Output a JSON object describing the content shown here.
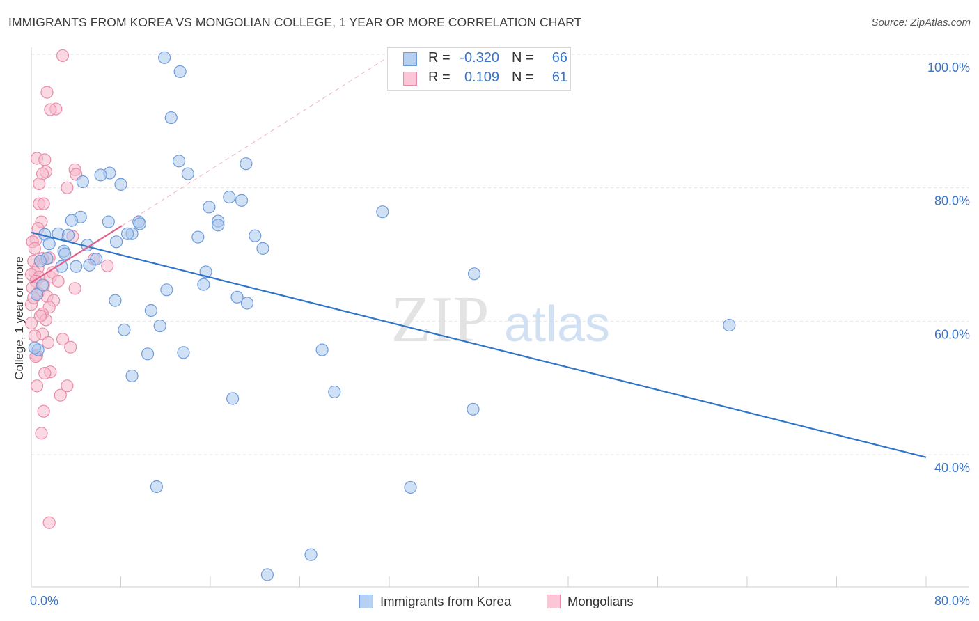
{
  "title": "IMMIGRANTS FROM KOREA VS MONGOLIAN COLLEGE, 1 YEAR OR MORE CORRELATION CHART",
  "source": "Source: ZipAtlas.com",
  "watermark": {
    "zip": "ZIP",
    "atlas": "atlas"
  },
  "colors": {
    "blue_fill": "#a9c6ec",
    "blue_stroke": "#6d9bdb",
    "blue_line": "#2f74c8",
    "pink_fill": "#f5b9cc",
    "pink_stroke": "#e98aa8",
    "pink_line": "#e25f8c",
    "axis_text": "#3b75c9",
    "grid": "#e3e3e3"
  },
  "legend": {
    "rows": [
      {
        "r_label": "R =",
        "r_value": "-0.320",
        "n_label": "N =",
        "n_value": "66"
      },
      {
        "r_label": "R =",
        "r_value": "0.109",
        "n_label": "N =",
        "n_value": "61"
      }
    ]
  },
  "bottom_legend": {
    "series1": "Immigrants from Korea",
    "series2": "Mongolians"
  },
  "chart_data": {
    "type": "scatter",
    "title": "IMMIGRANTS FROM KOREA VS MONGOLIAN COLLEGE, 1 YEAR OR MORE CORRELATION CHART",
    "xlabel": "",
    "ylabel": "College, 1 year or more",
    "xlim": [
      0,
      80
    ],
    "ylim": [
      20,
      104
    ],
    "x_tick_labels": [
      "0.0%",
      "80.0%"
    ],
    "y_ticks": [
      40,
      60,
      80,
      100
    ],
    "y_tick_labels": [
      "40.0%",
      "60.0%",
      "80.0%",
      "100.0%"
    ],
    "grid": true,
    "legend_position": "top-center",
    "series": [
      {
        "name": "Immigrants from Korea",
        "color": "#a9c6ec",
        "R": -0.32,
        "N": 66,
        "points": [
          [
            11.9,
            99.5
          ],
          [
            13.3,
            97.4
          ],
          [
            12.5,
            90.5
          ],
          [
            13.2,
            84.0
          ],
          [
            19.2,
            83.6
          ],
          [
            14.0,
            82.1
          ],
          [
            7.0,
            82.2
          ],
          [
            6.2,
            81.9
          ],
          [
            4.6,
            80.9
          ],
          [
            8.0,
            80.5
          ],
          [
            17.7,
            78.6
          ],
          [
            18.8,
            78.1
          ],
          [
            31.4,
            76.4
          ],
          [
            15.9,
            77.1
          ],
          [
            4.4,
            75.6
          ],
          [
            3.6,
            75.1
          ],
          [
            6.9,
            74.9
          ],
          [
            9.6,
            74.9
          ],
          [
            9.7,
            74.6
          ],
          [
            16.7,
            75.0
          ],
          [
            16.7,
            74.4
          ],
          [
            2.4,
            73.1
          ],
          [
            1.2,
            73.0
          ],
          [
            3.3,
            72.9
          ],
          [
            9.0,
            73.1
          ],
          [
            8.6,
            73.1
          ],
          [
            14.9,
            72.6
          ],
          [
            20.0,
            72.8
          ],
          [
            7.6,
            71.9
          ],
          [
            1.6,
            71.6
          ],
          [
            5.0,
            71.4
          ],
          [
            20.7,
            70.9
          ],
          [
            2.9,
            70.5
          ],
          [
            3.0,
            70.1
          ],
          [
            1.4,
            69.4
          ],
          [
            0.8,
            69.0
          ],
          [
            5.8,
            69.3
          ],
          [
            5.2,
            68.4
          ],
          [
            2.7,
            68.2
          ],
          [
            4.0,
            68.2
          ],
          [
            15.6,
            67.4
          ],
          [
            39.6,
            67.1
          ],
          [
            15.4,
            65.5
          ],
          [
            1.0,
            65.4
          ],
          [
            12.1,
            64.7
          ],
          [
            18.4,
            63.6
          ],
          [
            19.3,
            62.7
          ],
          [
            7.5,
            63.1
          ],
          [
            10.7,
            61.6
          ],
          [
            11.5,
            59.3
          ],
          [
            62.4,
            59.4
          ],
          [
            8.3,
            58.7
          ],
          [
            26.0,
            55.7
          ],
          [
            10.4,
            55.1
          ],
          [
            13.6,
            55.3
          ],
          [
            0.6,
            55.7
          ],
          [
            9.0,
            51.8
          ],
          [
            27.1,
            49.4
          ],
          [
            18.0,
            48.4
          ],
          [
            39.5,
            46.8
          ],
          [
            11.2,
            35.2
          ],
          [
            33.9,
            35.1
          ],
          [
            25.0,
            25.0
          ],
          [
            21.1,
            22.0
          ],
          [
            0.3,
            56.0
          ],
          [
            0.5,
            64.0
          ]
        ],
        "trendline": {
          "x": [
            0,
            80
          ],
          "y": [
            73.3,
            39.6
          ]
        }
      },
      {
        "name": "Mongolians",
        "color": "#f5b9cc",
        "R": 0.109,
        "N": 61,
        "points": [
          [
            2.8,
            99.8
          ],
          [
            1.4,
            94.3
          ],
          [
            2.2,
            91.8
          ],
          [
            1.7,
            91.7
          ],
          [
            0.5,
            84.4
          ],
          [
            1.2,
            84.2
          ],
          [
            3.9,
            82.7
          ],
          [
            1.3,
            82.4
          ],
          [
            1.0,
            82.1
          ],
          [
            0.7,
            80.6
          ],
          [
            3.2,
            80.0
          ],
          [
            0.7,
            77.6
          ],
          [
            1.1,
            77.6
          ],
          [
            0.9,
            74.9
          ],
          [
            0.6,
            73.9
          ],
          [
            3.7,
            72.7
          ],
          [
            0.4,
            72.2
          ],
          [
            0.1,
            71.9
          ],
          [
            0.3,
            70.9
          ],
          [
            1.6,
            69.5
          ],
          [
            1.0,
            69.4
          ],
          [
            0.2,
            69.0
          ],
          [
            5.6,
            69.3
          ],
          [
            6.8,
            68.3
          ],
          [
            0.6,
            68.0
          ],
          [
            0.3,
            67.3
          ],
          [
            0.0,
            67.0
          ],
          [
            0.7,
            66.6
          ],
          [
            1.7,
            66.6
          ],
          [
            0.4,
            66.0
          ],
          [
            1.1,
            65.4
          ],
          [
            0.1,
            65.0
          ],
          [
            3.9,
            64.9
          ],
          [
            0.6,
            64.2
          ],
          [
            1.4,
            63.7
          ],
          [
            2.0,
            63.1
          ],
          [
            0.0,
            62.5
          ],
          [
            1.6,
            62.1
          ],
          [
            1.0,
            61.1
          ],
          [
            1.3,
            60.2
          ],
          [
            0.0,
            59.7
          ],
          [
            1.0,
            58.1
          ],
          [
            2.8,
            57.3
          ],
          [
            1.5,
            56.8
          ],
          [
            3.5,
            56.1
          ],
          [
            0.5,
            54.9
          ],
          [
            0.4,
            54.7
          ],
          [
            1.7,
            52.4
          ],
          [
            1.2,
            52.2
          ],
          [
            0.5,
            50.3
          ],
          [
            3.2,
            50.3
          ],
          [
            2.6,
            48.9
          ],
          [
            1.1,
            46.5
          ],
          [
            0.9,
            43.2
          ],
          [
            1.6,
            29.8
          ],
          [
            4.0,
            82.0
          ],
          [
            0.2,
            63.5
          ],
          [
            0.8,
            60.8
          ],
          [
            1.9,
            67.3
          ],
          [
            2.4,
            66.0
          ],
          [
            0.3,
            57.8
          ]
        ],
        "trendline": {
          "x": [
            0,
            8.1
          ],
          "y": [
            65.8,
            74.3
          ]
        },
        "dashed_extension": {
          "x": [
            8.1,
            32.3
          ],
          "y": [
            74.3,
            100.0
          ]
        }
      }
    ]
  }
}
